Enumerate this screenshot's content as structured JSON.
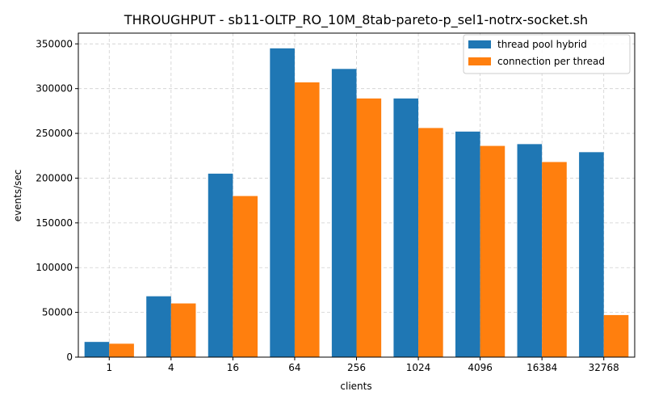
{
  "chart_data": {
    "type": "bar",
    "title": "THROUGHPUT - sb11-OLTP_RO_10M_8tab-pareto-p_sel1-notrx-socket.sh",
    "xlabel": "clients",
    "ylabel": "events/sec",
    "categories": [
      "1",
      "4",
      "16",
      "64",
      "256",
      "1024",
      "4096",
      "16384",
      "32768"
    ],
    "series": [
      {
        "name": "thread pool hybrid",
        "color": "#1f77b4",
        "values": [
          17000,
          68000,
          205000,
          345000,
          322000,
          289000,
          252000,
          238000,
          229000
        ]
      },
      {
        "name": "connection per thread",
        "color": "#ff7f0e",
        "values": [
          15000,
          60000,
          180000,
          307000,
          289000,
          256000,
          236000,
          218000,
          47000
        ]
      }
    ],
    "ylim": [
      0,
      362000
    ],
    "yticks": [
      0,
      50000,
      100000,
      150000,
      200000,
      250000,
      300000,
      350000
    ],
    "grid": true,
    "legend_position": "upper-right"
  }
}
